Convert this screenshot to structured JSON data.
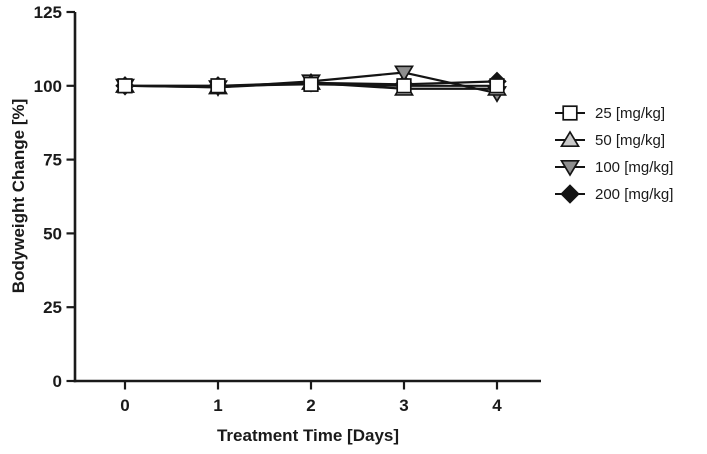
{
  "chart_data": {
    "type": "line",
    "title": "",
    "xlabel": "Treatment Time [Days]",
    "ylabel": "Bodyweight Change [%]",
    "x": [
      0,
      1,
      2,
      3,
      4
    ],
    "xticks": [
      "0",
      "1",
      "2",
      "3",
      "4"
    ],
    "yticks": [
      "0",
      "25",
      "50",
      "75",
      "100",
      "125"
    ],
    "ytick_values": [
      0,
      25,
      50,
      75,
      100,
      125
    ],
    "ylim": [
      0,
      125
    ],
    "xlim": [
      0,
      4
    ],
    "grid": false,
    "legend_position": "right",
    "line_color": "#141414",
    "axis_color": "#1a1a1a",
    "background_color": "#ffffff",
    "series": [
      {
        "name": "25 [mg/kg]",
        "marker": "square",
        "marker_fill": "#ffffff",
        "values": [
          100,
          100,
          100.5,
          100,
          100
        ]
      },
      {
        "name": "50 [mg/kg]",
        "marker": "triangle-up",
        "marker_fill": "#c9c9c9",
        "values": [
          100,
          99.5,
          101,
          99,
          99
        ]
      },
      {
        "name": "100 [mg/kg]",
        "marker": "triangle-down",
        "marker_fill": "#8e8e8e",
        "values": [
          100,
          99.5,
          101.5,
          104.5,
          97.5
        ]
      },
      {
        "name": "200 [mg/kg]",
        "marker": "diamond",
        "marker_fill": "#141414",
        "values": [
          100,
          100,
          101,
          100.5,
          101.5
        ]
      }
    ]
  }
}
